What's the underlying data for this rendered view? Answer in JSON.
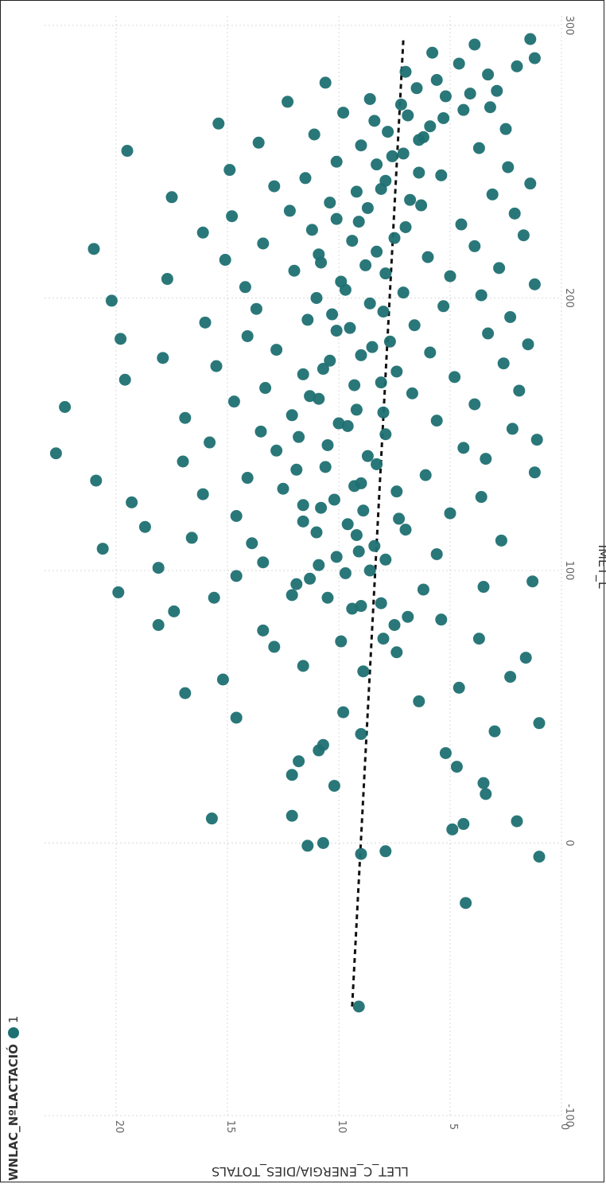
{
  "chart_data": {
    "type": "scatter",
    "rotation": "90deg-clockwise",
    "xlabel": "IMET_L",
    "ylabel": "LLET_C_ENERGIA/DIES_TOTALS",
    "xlim": [
      -100,
      300
    ],
    "ylim": [
      0,
      23
    ],
    "xticks": [
      "-100",
      "0",
      "100",
      "200",
      "300"
    ],
    "yticks": [
      "0",
      "5",
      "10",
      "15",
      "20"
    ],
    "grid": true,
    "legend": {
      "title": "WNLAC_NºLACTACIÓ",
      "entries": [
        "1"
      ],
      "placement": "top-left"
    },
    "series": [
      {
        "name": "1",
        "color": "#1f7072",
        "points": [
          [
            -60,
            9.1
          ],
          [
            -22,
            4.3
          ],
          [
            -5,
            1.0
          ],
          [
            -4,
            9.0
          ],
          [
            -3,
            7.9
          ],
          [
            -1,
            11.4
          ],
          [
            0,
            10.7
          ],
          [
            5,
            4.9
          ],
          [
            7,
            4.4
          ],
          [
            8,
            2.0
          ],
          [
            9,
            15.7
          ],
          [
            10,
            12.1
          ],
          [
            18,
            3.4
          ],
          [
            21,
            10.2
          ],
          [
            22,
            3.5
          ],
          [
            25,
            12.1
          ],
          [
            28,
            4.7
          ],
          [
            30,
            11.8
          ],
          [
            33,
            5.2
          ],
          [
            34,
            10.9
          ],
          [
            36,
            10.7
          ],
          [
            40,
            9.0
          ],
          [
            41,
            3.0
          ],
          [
            44,
            1.0
          ],
          [
            46,
            14.6
          ],
          [
            48,
            9.8
          ],
          [
            52,
            6.4
          ],
          [
            55,
            16.9
          ],
          [
            57,
            4.6
          ],
          [
            60,
            15.2
          ],
          [
            61,
            2.3
          ],
          [
            63,
            8.9
          ],
          [
            65,
            11.6
          ],
          [
            68,
            1.6
          ],
          [
            70,
            7.4
          ],
          [
            72,
            12.9
          ],
          [
            74,
            9.9
          ],
          [
            75,
            3.7
          ],
          [
            78,
            13.4
          ],
          [
            80,
            18.1
          ],
          [
            82,
            5.4
          ],
          [
            85,
            17.4
          ],
          [
            86,
            9.4
          ],
          [
            88,
            8.1
          ],
          [
            90,
            15.6
          ],
          [
            91,
            12.1
          ],
          [
            92,
            19.9
          ],
          [
            93,
            6.2
          ],
          [
            94,
            3.5
          ],
          [
            95,
            11.9
          ],
          [
            96,
            1.3
          ],
          [
            98,
            14.6
          ],
          [
            100,
            8.6
          ],
          [
            101,
            18.1
          ],
          [
            103,
            13.4
          ],
          [
            105,
            10.1
          ],
          [
            106,
            5.6
          ],
          [
            108,
            20.6
          ],
          [
            110,
            13.9
          ],
          [
            111,
            2.7
          ],
          [
            112,
            16.6
          ],
          [
            113,
            9.2
          ],
          [
            115,
            7.0
          ],
          [
            116,
            18.7
          ],
          [
            118,
            11.6
          ],
          [
            120,
            14.6
          ],
          [
            121,
            5.0
          ],
          [
            123,
            10.8
          ],
          [
            125,
            19.3
          ],
          [
            127,
            3.6
          ],
          [
            128,
            16.1
          ],
          [
            129,
            7.4
          ],
          [
            130,
            12.5
          ],
          [
            131,
            9.3
          ],
          [
            133,
            20.9
          ],
          [
            134,
            14.1
          ],
          [
            135,
            6.1
          ],
          [
            136,
            1.2
          ],
          [
            137,
            11.9
          ],
          [
            139,
            8.3
          ],
          [
            140,
            17.0
          ],
          [
            141,
            3.4
          ],
          [
            143,
            22.7
          ],
          [
            144,
            12.8
          ],
          [
            145,
            4.4
          ],
          [
            146,
            10.5
          ],
          [
            147,
            15.8
          ],
          [
            148,
            1.1
          ],
          [
            150,
            7.9
          ],
          [
            151,
            13.5
          ],
          [
            152,
            2.2
          ],
          [
            153,
            9.6
          ],
          [
            155,
            5.6
          ],
          [
            156,
            16.9
          ],
          [
            157,
            12.1
          ],
          [
            158,
            8.0
          ],
          [
            160,
            22.3
          ],
          [
            161,
            3.9
          ],
          [
            162,
            14.7
          ],
          [
            163,
            10.9
          ],
          [
            165,
            6.7
          ],
          [
            166,
            1.9
          ],
          [
            167,
            13.3
          ],
          [
            168,
            9.3
          ],
          [
            170,
            19.6
          ],
          [
            171,
            4.8
          ],
          [
            172,
            11.6
          ],
          [
            173,
            7.4
          ],
          [
            175,
            15.5
          ],
          [
            176,
            2.6
          ],
          [
            177,
            10.4
          ],
          [
            178,
            17.9
          ],
          [
            180,
            5.9
          ],
          [
            181,
            12.8
          ],
          [
            182,
            8.5
          ],
          [
            183,
            1.5
          ],
          [
            185,
            19.8
          ],
          [
            186,
            14.1
          ],
          [
            187,
            3.3
          ],
          [
            188,
            10.1
          ],
          [
            190,
            6.6
          ],
          [
            191,
            16.0
          ],
          [
            192,
            11.4
          ],
          [
            193,
            2.3
          ],
          [
            195,
            8.0
          ],
          [
            196,
            13.7
          ],
          [
            197,
            5.3
          ],
          [
            199,
            20.2
          ],
          [
            200,
            11.0
          ],
          [
            201,
            3.6
          ],
          [
            202,
            7.1
          ],
          [
            204,
            14.2
          ],
          [
            205,
            1.2
          ],
          [
            206,
            9.9
          ],
          [
            207,
            17.7
          ],
          [
            208,
            5.0
          ],
          [
            210,
            12.0
          ],
          [
            211,
            2.8
          ],
          [
            212,
            8.8
          ],
          [
            214,
            15.1
          ],
          [
            215,
            6.0
          ],
          [
            216,
            10.9
          ],
          [
            218,
            21.0
          ],
          [
            219,
            3.9
          ],
          [
            220,
            13.4
          ],
          [
            222,
            7.5
          ],
          [
            223,
            1.7
          ],
          [
            224,
            16.1
          ],
          [
            225,
            11.2
          ],
          [
            227,
            4.5
          ],
          [
            228,
            9.1
          ],
          [
            230,
            14.8
          ],
          [
            231,
            2.1
          ],
          [
            232,
            12.2
          ],
          [
            234,
            6.3
          ],
          [
            235,
            10.4
          ],
          [
            237,
            17.5
          ],
          [
            238,
            3.1
          ],
          [
            240,
            8.1
          ],
          [
            241,
            12.9
          ],
          [
            242,
            1.4
          ],
          [
            244,
            11.5
          ],
          [
            245,
            5.4
          ],
          [
            247,
            14.9
          ],
          [
            248,
            2.4
          ],
          [
            250,
            10.1
          ],
          [
            252,
            7.6
          ],
          [
            254,
            19.5
          ],
          [
            255,
            3.7
          ],
          [
            257,
            13.6
          ],
          [
            258,
            6.4
          ],
          [
            260,
            11.1
          ],
          [
            262,
            2.5
          ],
          [
            264,
            15.4
          ],
          [
            266,
            5.3
          ],
          [
            268,
            9.8
          ],
          [
            270,
            3.2
          ],
          [
            272,
            12.3
          ],
          [
            274,
            5.2
          ],
          [
            276,
            2.9
          ],
          [
            279,
            10.6
          ],
          [
            282,
            3.3
          ],
          [
            285,
            2.0
          ],
          [
            288,
            1.2
          ],
          [
            295,
            1.4
          ],
          [
            75,
            8.0
          ],
          [
            80,
            7.5
          ],
          [
            83,
            6.9
          ],
          [
            87,
            9.0
          ],
          [
            90,
            10.5
          ],
          [
            97,
            11.3
          ],
          [
            99,
            9.7
          ],
          [
            102,
            10.9
          ],
          [
            104,
            7.9
          ],
          [
            107,
            9.1
          ],
          [
            109,
            8.4
          ],
          [
            114,
            11.0
          ],
          [
            117,
            9.6
          ],
          [
            119,
            7.3
          ],
          [
            122,
            8.9
          ],
          [
            124,
            11.6
          ],
          [
            126,
            10.2
          ],
          [
            132,
            9.0
          ],
          [
            138,
            10.6
          ],
          [
            142,
            8.7
          ],
          [
            149,
            11.8
          ],
          [
            154,
            10.0
          ],
          [
            159,
            9.2
          ],
          [
            164,
            11.3
          ],
          [
            169,
            8.1
          ],
          [
            174,
            10.7
          ],
          [
            179,
            9.0
          ],
          [
            184,
            7.7
          ],
          [
            189,
            9.5
          ],
          [
            194,
            10.3
          ],
          [
            198,
            8.6
          ],
          [
            203,
            9.7
          ],
          [
            209,
            7.9
          ],
          [
            213,
            10.8
          ],
          [
            217,
            8.3
          ],
          [
            221,
            9.4
          ],
          [
            226,
            7.0
          ],
          [
            229,
            10.1
          ],
          [
            233,
            8.7
          ],
          [
            236,
            6.8
          ],
          [
            239,
            9.2
          ],
          [
            243,
            7.9
          ],
          [
            246,
            6.4
          ],
          [
            249,
            8.3
          ],
          [
            253,
            7.1
          ],
          [
            256,
            9.0
          ],
          [
            259,
            6.2
          ],
          [
            261,
            7.8
          ],
          [
            263,
            5.9
          ],
          [
            265,
            8.4
          ],
          [
            267,
            6.9
          ],
          [
            269,
            4.4
          ],
          [
            271,
            7.2
          ],
          [
            273,
            8.6
          ],
          [
            275,
            4.1
          ],
          [
            277,
            6.5
          ],
          [
            280,
            5.6
          ],
          [
            283,
            7.0
          ],
          [
            286,
            4.6
          ],
          [
            290,
            5.8
          ],
          [
            293,
            3.9
          ]
        ]
      }
    ],
    "trendline": {
      "style": "dashed",
      "color": "#111111",
      "points": [
        [
          -60,
          9.4
        ],
        [
          295,
          7.1
        ]
      ]
    }
  }
}
